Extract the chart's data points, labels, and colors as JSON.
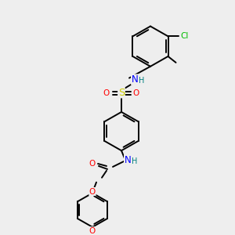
{
  "bg_color": "#eeeeee",
  "bond_color": "#000000",
  "atom_colors": {
    "N": "#0000ff",
    "O": "#ff0000",
    "S": "#cccc00",
    "Cl": "#00bb00",
    "C": "#000000"
  },
  "lw": 1.4,
  "fs": 7.5
}
